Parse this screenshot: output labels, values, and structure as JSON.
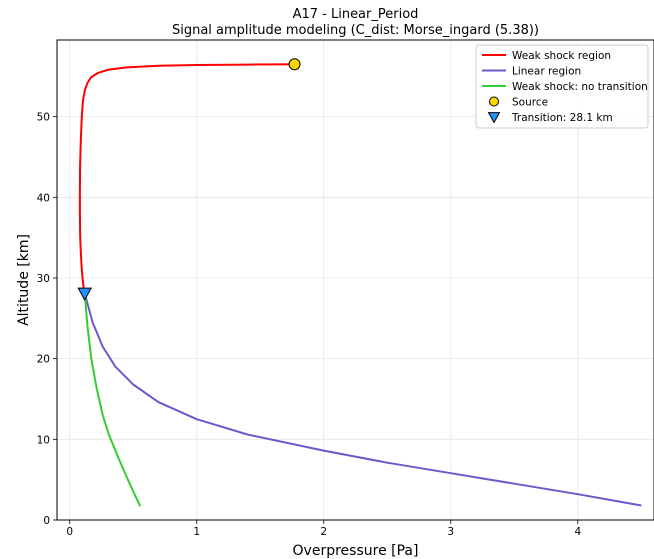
{
  "chart_data": {
    "type": "line",
    "title": "A17 - Linear_Period",
    "subtitle": "Signal amplitude modeling (C_dist: Morse_ingard (5.38))",
    "xlabel": "Overpressure [Pa]",
    "ylabel": "Altitude [km]",
    "xlim": [
      -0.1,
      4.6
    ],
    "ylim": [
      0,
      59.5
    ],
    "xticks": [
      0,
      1,
      2,
      3,
      4
    ],
    "yticks": [
      0,
      10,
      20,
      30,
      40,
      50
    ],
    "grid": true,
    "legend_position": "top-right",
    "series": [
      {
        "name": "Weak shock region",
        "color": "#ff0000",
        "x": [
          1.77,
          1.4,
          1.0,
          0.7,
          0.45,
          0.3,
          0.22,
          0.17,
          0.14,
          0.12,
          0.105,
          0.095,
          0.087,
          0.082,
          0.08,
          0.08,
          0.083,
          0.088,
          0.095,
          0.103,
          0.11,
          0.118
        ],
        "y": [
          56.5,
          56.45,
          56.4,
          56.3,
          56.1,
          55.8,
          55.4,
          54.9,
          54.2,
          53.3,
          52.0,
          50.0,
          47.0,
          44.0,
          41.0,
          38.0,
          35.0,
          33.0,
          31.0,
          29.7,
          28.7,
          28.1
        ]
      },
      {
        "name": "Linear region",
        "color": "#6a5acd",
        "x": [
          0.118,
          0.18,
          0.26,
          0.36,
          0.5,
          0.7,
          1.0,
          1.4,
          2.0,
          2.5,
          3.0,
          3.5,
          4.0,
          4.5
        ],
        "y": [
          28.1,
          24.5,
          21.5,
          19.0,
          16.8,
          14.6,
          12.5,
          10.6,
          8.6,
          7.1,
          5.8,
          4.5,
          3.2,
          1.8
        ]
      },
      {
        "name": "Weak shock: no transition",
        "color": "#32cd32",
        "x": [
          0.118,
          0.14,
          0.17,
          0.21,
          0.26,
          0.31,
          0.37,
          0.43,
          0.49,
          0.555
        ],
        "y": [
          28.1,
          24.0,
          20.0,
          16.5,
          13.0,
          10.5,
          8.2,
          6.0,
          3.9,
          1.7
        ]
      }
    ],
    "markers": [
      {
        "name": "Source",
        "shape": "circle",
        "color": "#ffd700",
        "x": 1.77,
        "y": 56.5
      },
      {
        "name": "Transition: 28.1 km",
        "shape": "triangle-down",
        "color": "#1e90ff",
        "x": 0.118,
        "y": 28.1
      }
    ]
  }
}
